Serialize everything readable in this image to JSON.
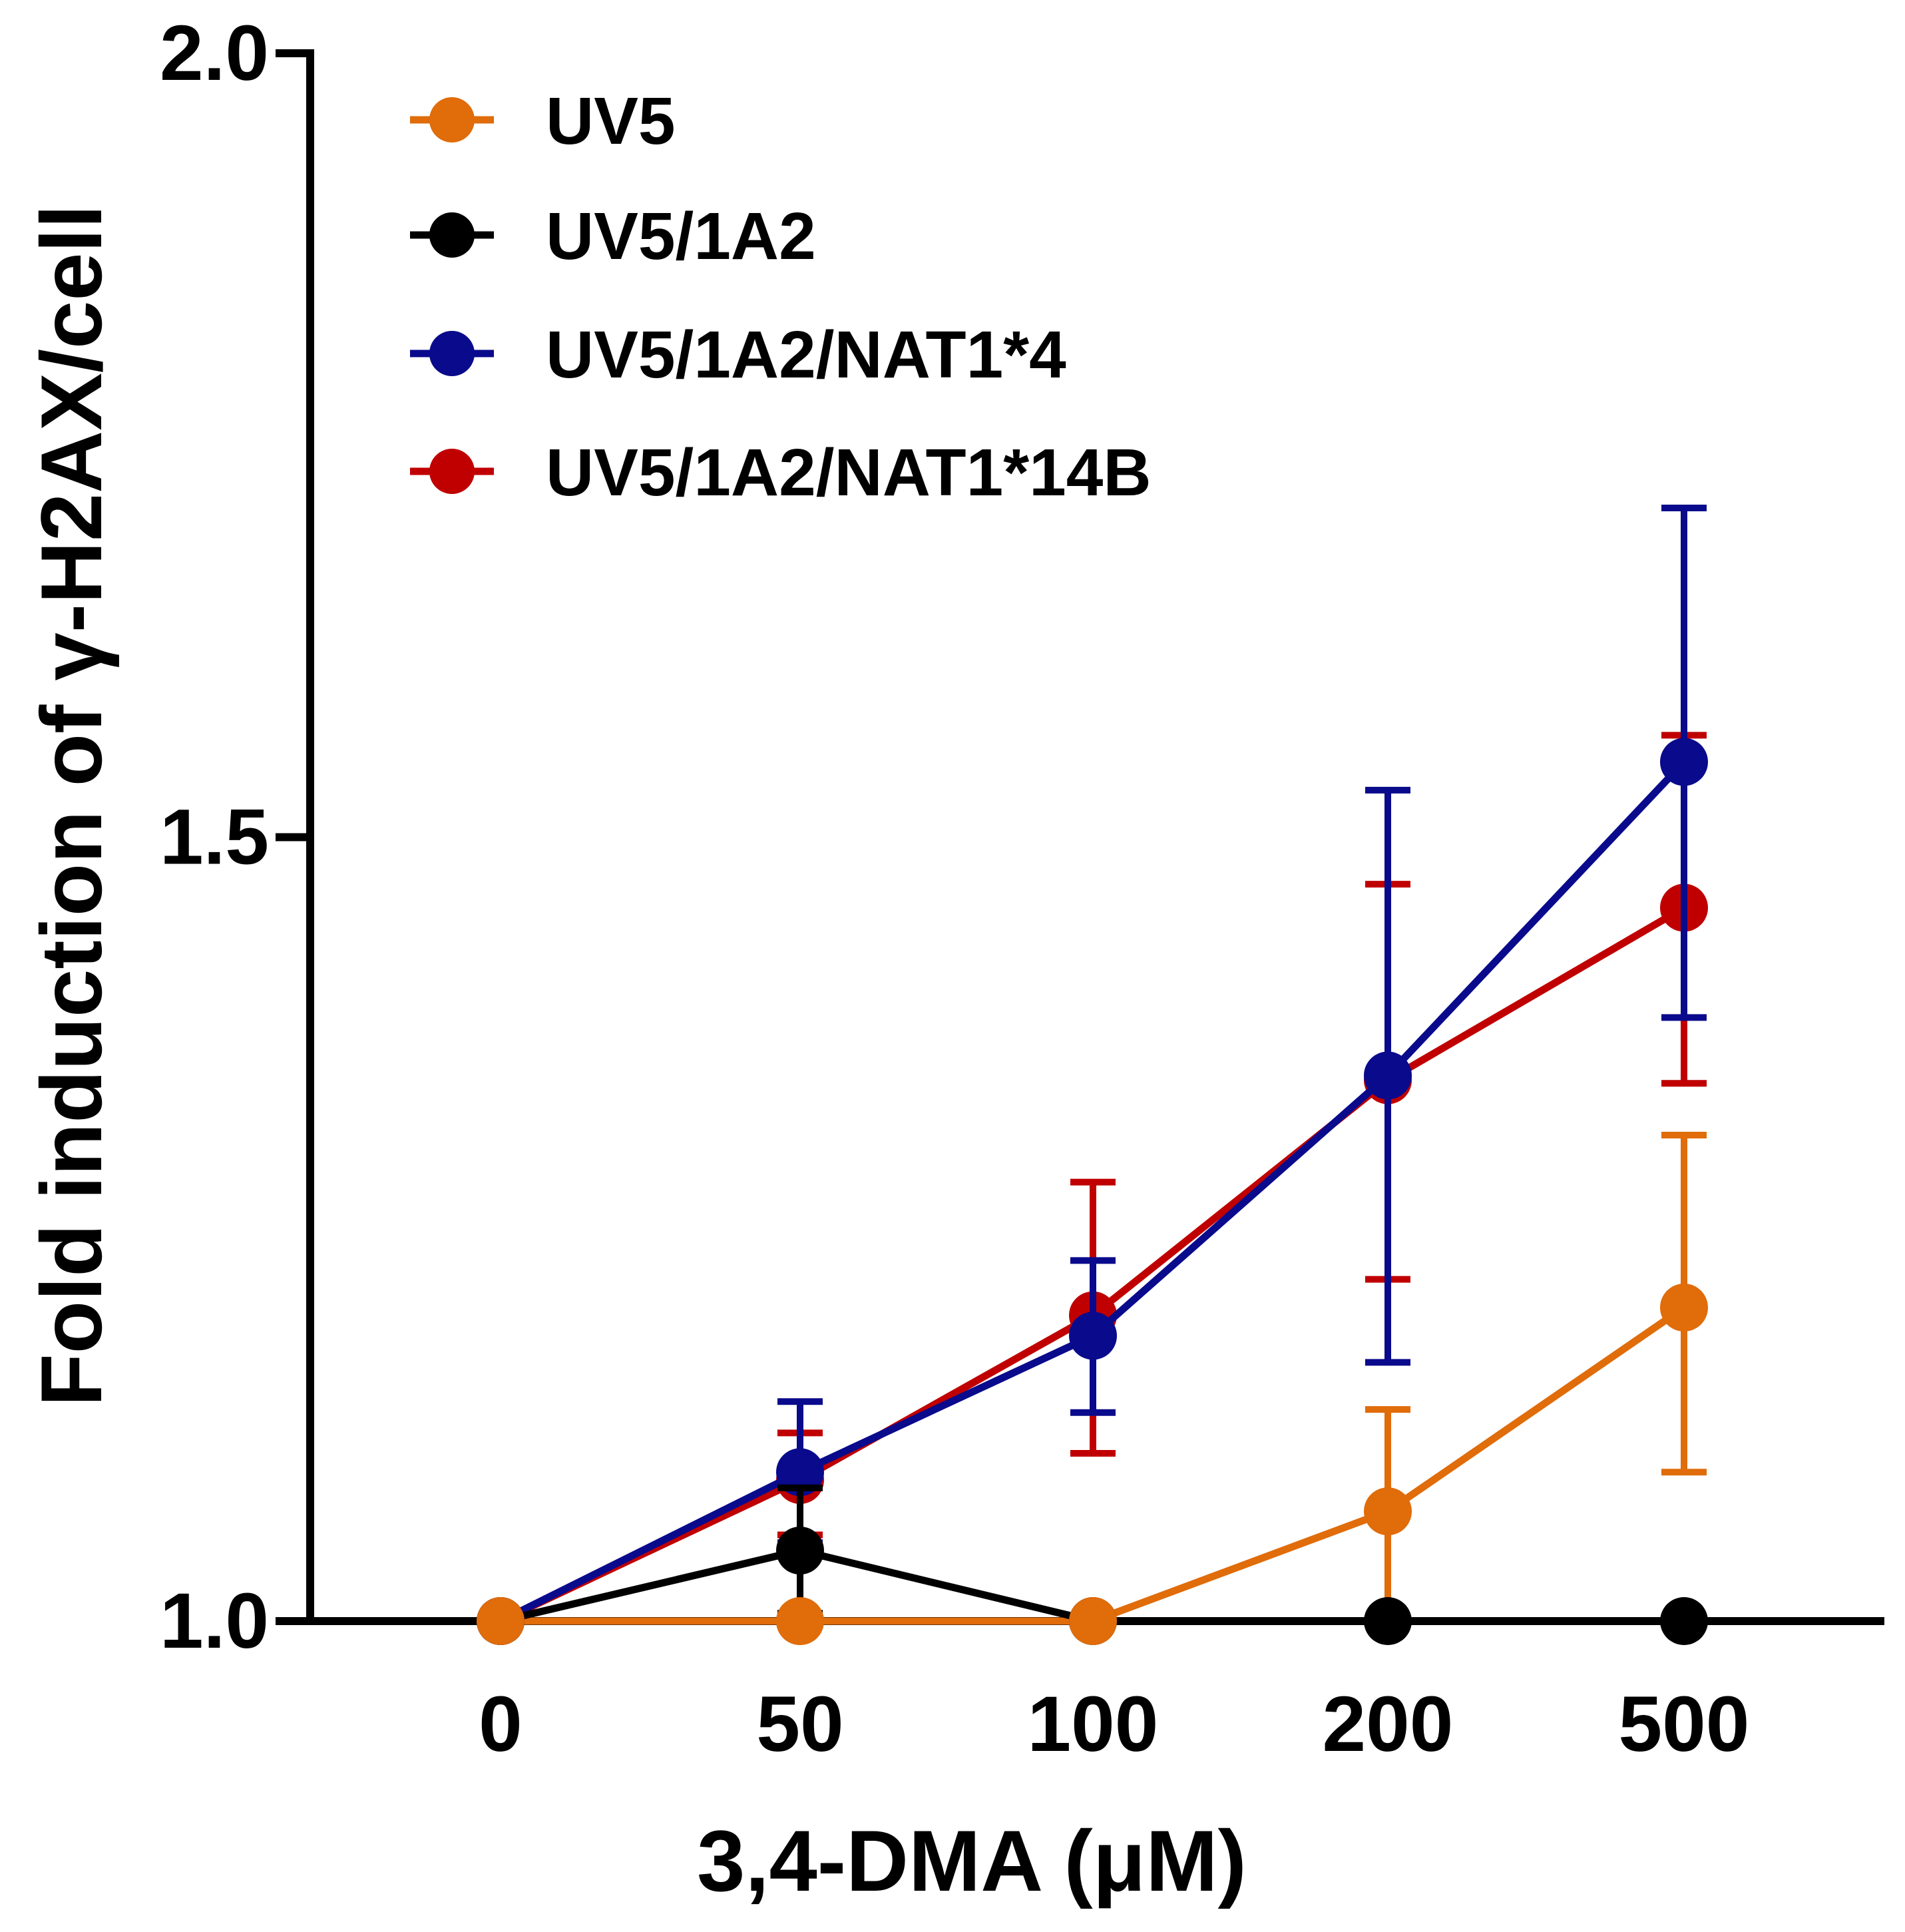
{
  "chart_data": {
    "type": "line",
    "xlabel": "3,4-DMA (μM)",
    "ylabel": "Fold induction of γ-H2AX/cell",
    "categories": [
      "0",
      "50",
      "100",
      "200",
      "500"
    ],
    "ylim": [
      1.0,
      2.0
    ],
    "yticks": [
      1.0,
      1.5,
      2.0
    ],
    "ytick_labels": [
      "1.0",
      "1.5",
      "2.0"
    ],
    "grid": false,
    "legend_position": "top-left",
    "series": [
      {
        "name": "UV5",
        "color": "#e06c0a",
        "values": [
          1.0,
          1.0,
          1.0,
          1.07,
          1.2
        ],
        "err_upper": [
          null,
          null,
          null,
          1.135,
          1.31
        ],
        "err_lower": [
          null,
          null,
          null,
          1.0,
          1.095
        ]
      },
      {
        "name": "UV5/1A2",
        "color": "#000000",
        "values": [
          1.0,
          1.045,
          1.0,
          1.0,
          1.0
        ],
        "err_upper": [
          null,
          1.085,
          null,
          null,
          null
        ],
        "err_lower": [
          null,
          1.005,
          null,
          null,
          null
        ]
      },
      {
        "name": "UV5/1A2/NAT1*4",
        "color": "#0a0a8c",
        "values": [
          1.0,
          1.095,
          1.182,
          1.348,
          1.548
        ],
        "err_upper": [
          null,
          1.14,
          1.23,
          1.53,
          1.71
        ],
        "err_lower": [
          null,
          1.05,
          1.133,
          1.165,
          1.385
        ]
      },
      {
        "name": "UV5/1A2/NAT1*14B",
        "color": "#c00000",
        "values": [
          1.0,
          1.09,
          1.195,
          1.345,
          1.455
        ],
        "err_upper": [
          null,
          1.12,
          1.28,
          1.47,
          1.565
        ],
        "err_lower": [
          null,
          1.055,
          1.107,
          1.218,
          1.343
        ]
      }
    ]
  }
}
